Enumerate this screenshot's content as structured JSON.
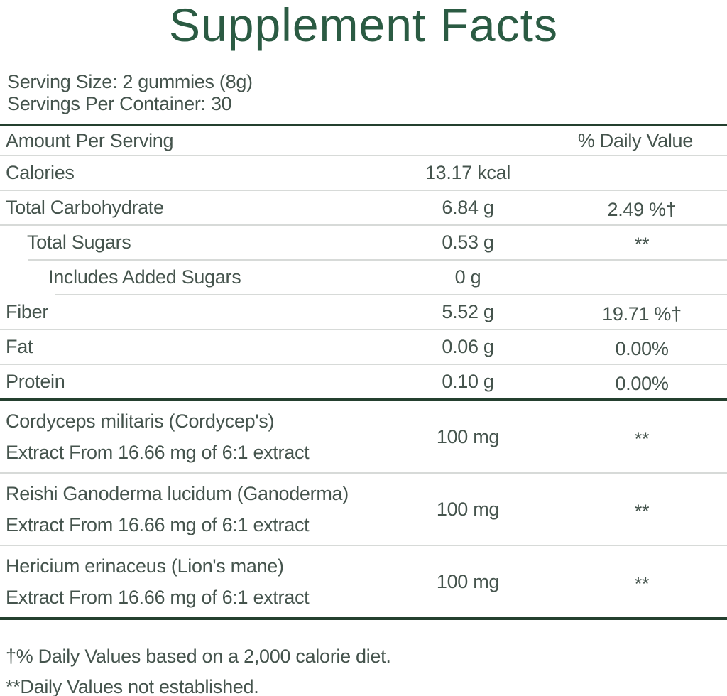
{
  "colors": {
    "title_green": "#2b5b43",
    "body_text": "#45544d",
    "thick_rule": "#24402f",
    "thin_rule": "#d7dad8",
    "background": "#ffffff"
  },
  "title": "Supplement Facts",
  "serving": {
    "size": "Serving Size: 2 gummies (8g)",
    "per_container": "Servings Per Container: 30"
  },
  "table": {
    "header": {
      "amount_per_serving": "Amount Per Serving",
      "daily_value": "% Daily Value"
    },
    "rows": [
      {
        "label": "Calories",
        "amount": "13.17 kcal",
        "dv": ""
      },
      {
        "label": "Total Carbohydrate",
        "amount": "6.84 g",
        "dv": "2.49 %†"
      },
      {
        "label": "Total Sugars",
        "amount": "0.53 g",
        "dv": "**"
      },
      {
        "label": "Includes Added Sugars",
        "amount": "0 g",
        "dv": ""
      },
      {
        "label": "Fiber",
        "amount": "5.52 g",
        "dv": "19.71 %†"
      },
      {
        "label": "Fat",
        "amount": "0.06 g",
        "dv": "0.00%"
      },
      {
        "label": "Protein",
        "amount": "0.10 g",
        "dv": "0.00%"
      }
    ],
    "ingredients": [
      {
        "line1": "Cordyceps militaris (Cordycep's)",
        "line2": "Extract From 16.66 mg of 6:1 extract",
        "amount": "100 mg",
        "dv": "**"
      },
      {
        "line1": "Reishi Ganoderma lucidum (Ganoderma)",
        "line2": "Extract From 16.66 mg of 6:1 extract",
        "amount": "100 mg",
        "dv": "**"
      },
      {
        "line1": "Hericium erinaceus (Lion's mane)",
        "line2": "Extract From 16.66 mg of 6:1 extract",
        "amount": "100 mg",
        "dv": "**"
      }
    ]
  },
  "footnotes": {
    "daily_values_basis": "†% Daily Values based on a 2,000 calorie diet.",
    "not_established": "**Daily Values not established."
  }
}
